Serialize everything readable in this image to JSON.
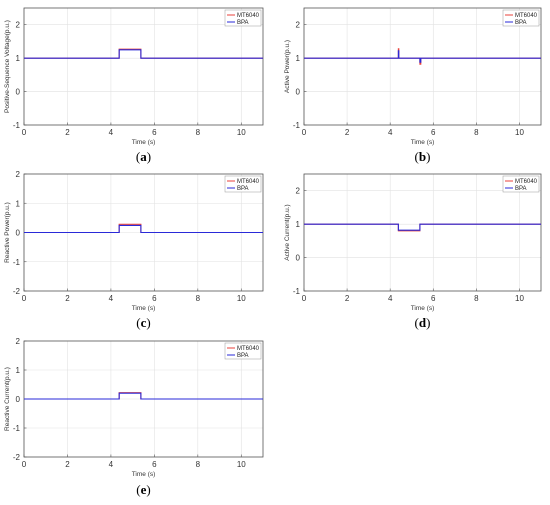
{
  "series_colors": {
    "MT6040": "#e8413b",
    "BPA": "#2a2ad8"
  },
  "chart_data": [
    {
      "type": "line",
      "panel": "(a)",
      "panel_letter": "a",
      "xlabel": "Time (s)",
      "ylabel": "Positive-Sequence Voltage(p.u.)",
      "xlim": [
        0,
        11
      ],
      "ylim": [
        -1,
        2.5
      ],
      "xticks": [
        0,
        2,
        4,
        6,
        8,
        10
      ],
      "yticks": [
        -1,
        0,
        1,
        2
      ],
      "grid": true,
      "legend": "top-right",
      "series": [
        {
          "name": "MT6040",
          "x": [
            0,
            4.38,
            4.38,
            5.38,
            5.38,
            11
          ],
          "y": [
            1.0,
            1.0,
            1.27,
            1.27,
            1.0,
            1.0
          ]
        },
        {
          "name": "BPA",
          "x": [
            0,
            4.38,
            4.38,
            5.38,
            5.38,
            11
          ],
          "y": [
            1.0,
            1.0,
            1.25,
            1.25,
            1.0,
            1.0
          ]
        }
      ]
    },
    {
      "type": "line",
      "panel": "(b)",
      "panel_letter": "b",
      "xlabel": "Time (s)",
      "ylabel": "Active Power(p.u.)",
      "xlim": [
        0,
        11
      ],
      "ylim": [
        -1,
        2.5
      ],
      "xticks": [
        0,
        2,
        4,
        6,
        8,
        10
      ],
      "yticks": [
        -1,
        0,
        1,
        2
      ],
      "grid": true,
      "legend": "top-right",
      "series": [
        {
          "name": "MT6040",
          "x": [
            0,
            4.38,
            4.38,
            4.4,
            4.4,
            5.38,
            5.38,
            5.42,
            5.42,
            11
          ],
          "y": [
            1.0,
            1.0,
            1.28,
            1.28,
            1.0,
            1.0,
            0.82,
            0.82,
            1.0,
            1.0
          ]
        },
        {
          "name": "BPA",
          "x": [
            0,
            4.38,
            4.38,
            4.4,
            4.4,
            5.38,
            5.38,
            5.42,
            5.42,
            11
          ],
          "y": [
            1.0,
            1.0,
            1.22,
            1.22,
            1.0,
            1.0,
            0.88,
            0.88,
            1.0,
            1.0
          ]
        }
      ]
    },
    {
      "type": "line",
      "panel": "(c)",
      "panel_letter": "c",
      "xlabel": "Time (s)",
      "ylabel": "Reactive Power(p.u.)",
      "xlim": [
        0,
        11
      ],
      "ylim": [
        -2,
        2
      ],
      "xticks": [
        0,
        2,
        4,
        6,
        8,
        10
      ],
      "yticks": [
        -2,
        -1,
        0,
        1,
        2
      ],
      "grid": true,
      "legend": "top-right",
      "series": [
        {
          "name": "MT6040",
          "x": [
            0,
            4.38,
            4.38,
            5.38,
            5.38,
            11
          ],
          "y": [
            0.0,
            0.0,
            0.28,
            0.28,
            0.0,
            0.0
          ]
        },
        {
          "name": "BPA",
          "x": [
            0,
            4.38,
            4.38,
            5.38,
            5.38,
            11
          ],
          "y": [
            0.0,
            0.0,
            0.24,
            0.24,
            0.0,
            0.0
          ]
        }
      ]
    },
    {
      "type": "line",
      "panel": "(d)",
      "panel_letter": "d",
      "xlabel": "Time (s)",
      "ylabel": "Active Current(p.u.)",
      "xlim": [
        0,
        11
      ],
      "ylim": [
        -1,
        2.5
      ],
      "xticks": [
        0,
        2,
        4,
        6,
        8,
        10
      ],
      "yticks": [
        -1,
        0,
        1,
        2
      ],
      "grid": true,
      "legend": "top-right",
      "series": [
        {
          "name": "MT6040",
          "x": [
            0,
            4.38,
            4.38,
            5.38,
            5.38,
            11
          ],
          "y": [
            1.0,
            1.0,
            0.8,
            0.8,
            1.0,
            1.0
          ]
        },
        {
          "name": "BPA",
          "x": [
            0,
            4.38,
            4.38,
            5.38,
            5.38,
            11
          ],
          "y": [
            1.0,
            1.0,
            0.82,
            0.82,
            1.0,
            1.0
          ]
        }
      ]
    },
    {
      "type": "line",
      "panel": "(e)",
      "panel_letter": "e",
      "xlabel": "Time (s)",
      "ylabel": "Reactive Current(p.u.)",
      "xlim": [
        0,
        11
      ],
      "ylim": [
        -2,
        2
      ],
      "xticks": [
        0,
        2,
        4,
        6,
        8,
        10
      ],
      "yticks": [
        -2,
        -1,
        0,
        1,
        2
      ],
      "grid": true,
      "legend": "top-right",
      "series": [
        {
          "name": "MT6040",
          "x": [
            0,
            4.38,
            4.38,
            5.38,
            5.38,
            11
          ],
          "y": [
            0.0,
            0.0,
            0.22,
            0.22,
            0.0,
            0.0
          ]
        },
        {
          "name": "BPA",
          "x": [
            0,
            4.38,
            4.38,
            5.38,
            5.38,
            11
          ],
          "y": [
            0.0,
            0.0,
            0.2,
            0.2,
            0.0,
            0.0
          ]
        }
      ]
    }
  ]
}
